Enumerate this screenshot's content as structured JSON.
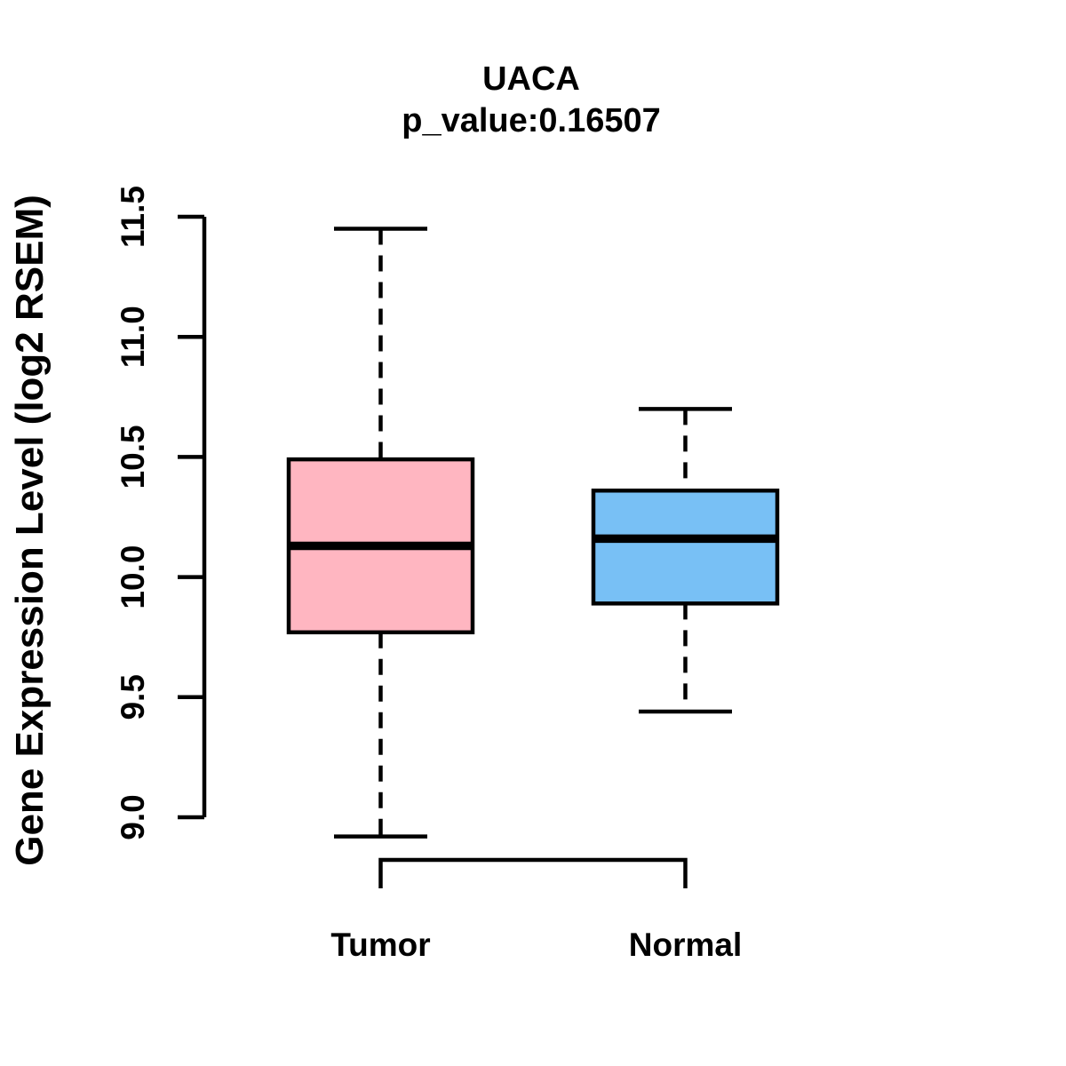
{
  "title": "UACA",
  "subtitle": "p_value:0.16507",
  "ylabel": "Gene Expression Level (log2 RSEM)",
  "chart_data": {
    "type": "boxplot",
    "title": "UACA",
    "subtitle": "p_value:0.16507",
    "ylabel": "Gene Expression Level (log2 RSEM)",
    "xlabel": "",
    "categories": [
      "Tumor",
      "Normal"
    ],
    "series": [
      {
        "name": "Tumor",
        "min": 8.92,
        "q1": 9.77,
        "median": 10.13,
        "q3": 10.49,
        "max": 11.45,
        "color": "#FFB6C1"
      },
      {
        "name": "Normal",
        "min": 9.44,
        "q1": 9.89,
        "median": 10.16,
        "q3": 10.36,
        "max": 10.7,
        "color": "#78C0F5"
      }
    ],
    "ylim": [
      9.0,
      11.5
    ],
    "yticks": [
      "9.0",
      "9.5",
      "10.0",
      "10.5",
      "11.0",
      "11.5"
    ],
    "grid": false,
    "legend": "none",
    "whisker_style": "dashed",
    "box_border_color": "#000000",
    "median_color": "#000000",
    "axis_color": "#000000",
    "text_color": "#000000"
  }
}
